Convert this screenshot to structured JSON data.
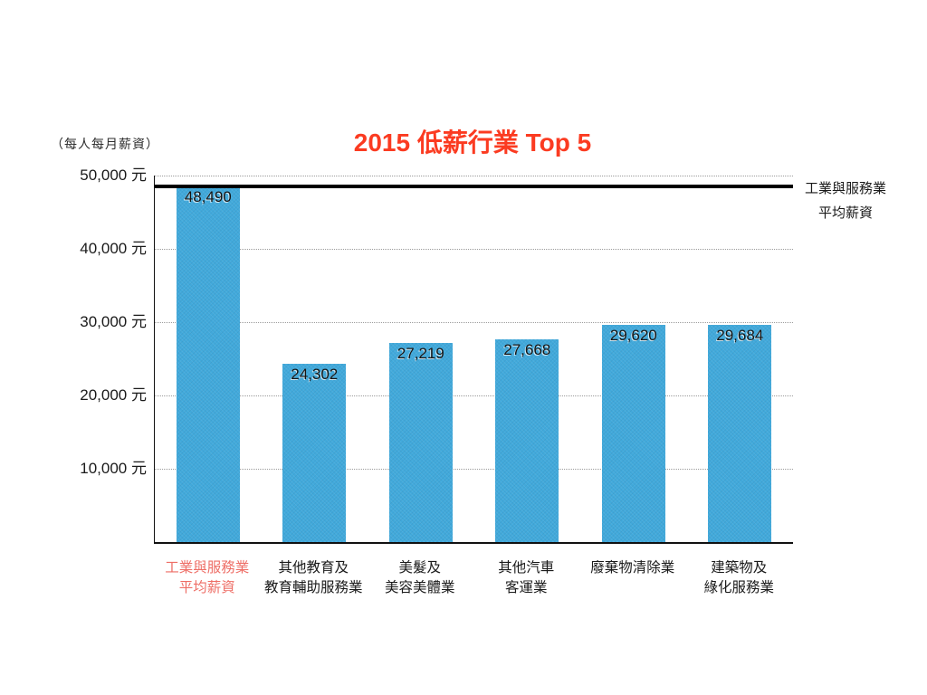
{
  "title": "2015 低薪行業 Top 5",
  "axis_note": "（每人每月薪資）",
  "colors": {
    "title": "#fb3b21",
    "bar": "#41a9db",
    "highlight_label": "#ee6e66",
    "grid": "#9b9b9b",
    "reference_line": "#000000"
  },
  "chart_data": {
    "type": "bar",
    "title": "2015 低薪行業 Top 5",
    "unit_note": "（每人每月薪資）",
    "categories": [
      [
        "工業與服務業",
        "平均薪資"
      ],
      [
        "其他教育及",
        "教育輔助服務業"
      ],
      [
        "美髮及",
        "美容美體業"
      ],
      [
        "其他汽車",
        "客運業"
      ],
      [
        "廢棄物清除業"
      ],
      [
        "建築物及",
        "綠化服務業"
      ]
    ],
    "values": [
      48490,
      24302,
      27219,
      27668,
      29620,
      29684
    ],
    "bar_labels": [
      "48,490",
      "24,302",
      "27,219",
      "27,668",
      "29,620",
      "29,684"
    ],
    "ylim": [
      0,
      50000
    ],
    "yticks": [
      {
        "value": 50000,
        "label": "50,000 元"
      },
      {
        "value": 40000,
        "label": "40,000 元"
      },
      {
        "value": 30000,
        "label": "30,000 元"
      },
      {
        "value": 20000,
        "label": "20,000 元"
      },
      {
        "value": 10000,
        "label": "10,000 元"
      }
    ],
    "grid": "horizontal-dotted",
    "legend": "none",
    "highlight_category_index": 0,
    "reference_line": {
      "value": 48490,
      "label_lines": [
        "工業與服務業",
        "平均薪資"
      ]
    }
  }
}
